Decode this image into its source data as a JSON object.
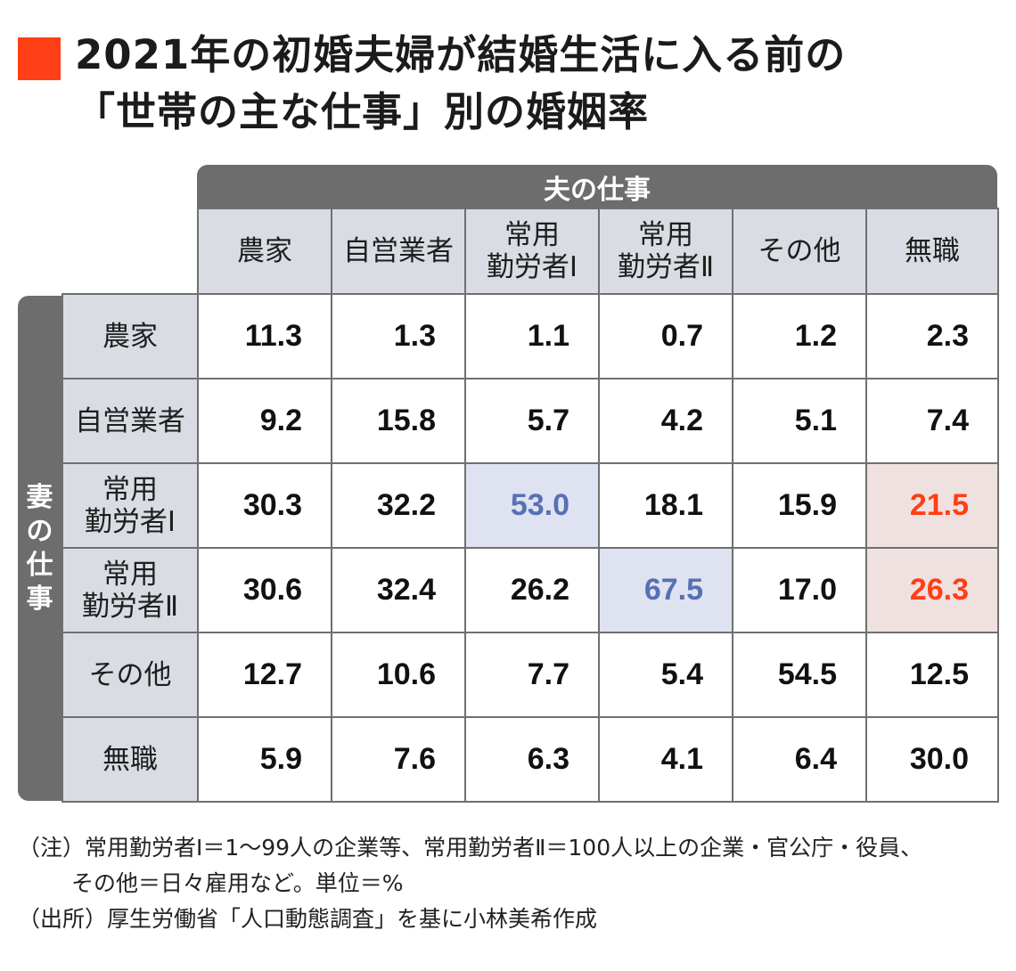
{
  "title": {
    "line1": "2021年の初婚夫婦が結婚生活に入る前の",
    "line2": "「世帯の主な仕事」別の婚姻率"
  },
  "colors": {
    "accent": "#ff3f15",
    "highlight_blue": "#5770b4",
    "header_gray": "#6d6d6d",
    "label_bg": "#d9dde3"
  },
  "chart_data": {
    "type": "table",
    "column_group_label": "夫の仕事",
    "row_group_label": "妻の仕事",
    "columns": [
      "農家",
      "自営業者",
      "常用\n勤労者Ⅰ",
      "常用\n勤労者Ⅱ",
      "その他",
      "無職"
    ],
    "rows": [
      {
        "label": "農家",
        "values": [
          "11.3",
          "1.3",
          "1.1",
          "0.7",
          "1.2",
          "2.3"
        ]
      },
      {
        "label": "自営業者",
        "values": [
          "9.2",
          "15.8",
          "5.7",
          "4.2",
          "5.1",
          "7.4"
        ]
      },
      {
        "label": "常用\n勤労者Ⅰ",
        "values": [
          "30.3",
          "32.2",
          "53.0",
          "18.1",
          "15.9",
          "21.5"
        ]
      },
      {
        "label": "常用\n勤労者Ⅱ",
        "values": [
          "30.6",
          "32.4",
          "26.2",
          "67.5",
          "17.0",
          "26.3"
        ]
      },
      {
        "label": "その他",
        "values": [
          "12.7",
          "10.6",
          "7.7",
          "5.4",
          "54.5",
          "12.5"
        ]
      },
      {
        "label": "無職",
        "values": [
          "5.9",
          "7.6",
          "6.3",
          "4.1",
          "6.4",
          "30.0"
        ]
      }
    ],
    "highlighted_blue": [
      [
        2,
        2
      ],
      [
        3,
        3
      ]
    ],
    "highlighted_red": [
      [
        2,
        5
      ],
      [
        3,
        5
      ]
    ]
  },
  "notes": {
    "line1": "（注）常用勤労者Ⅰ＝1～99人の企業等、常用勤労者Ⅱ＝100人以上の企業・官公庁・役員、",
    "line2": "その他＝日々雇用など。単位＝%",
    "line3": "（出所）厚生労働省「人口動態調査」を基に小林美希作成"
  }
}
